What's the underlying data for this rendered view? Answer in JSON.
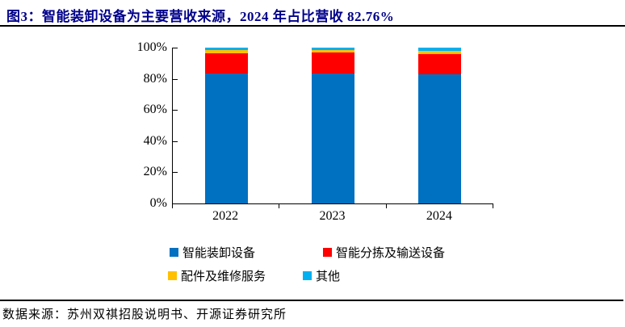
{
  "header": {
    "title": "图3：智能装卸设备为主要营收来源，2024 年占比营收 82.76%",
    "title_color": "#00008B"
  },
  "footer": {
    "source": "数据来源：苏州双祺招股说明书、开源证券研究所"
  },
  "chart_data": {
    "type": "bar",
    "stacked": true,
    "title": "",
    "xlabel": "",
    "ylabel": "",
    "categories": [
      "2022",
      "2023",
      "2024"
    ],
    "series": [
      {
        "name": "智能装卸设备",
        "color": "#0070C0",
        "values": [
          83.2,
          83.6,
          82.76
        ]
      },
      {
        "name": "智能分拣及输送设备",
        "color": "#FF0000",
        "values": [
          13.2,
          13.3,
          13.04
        ]
      },
      {
        "name": "配件及维修服务",
        "color": "#FFC000",
        "values": [
          2.1,
          1.5,
          2.1
        ]
      },
      {
        "name": "其他",
        "color": "#00B0F0",
        "values": [
          1.5,
          1.6,
          2.1
        ]
      }
    ],
    "ylim": [
      0,
      100
    ],
    "y_tick_step": 20,
    "y_tick_labels": [
      "0%",
      "20%",
      "40%",
      "60%",
      "80%",
      "100%"
    ],
    "grid": false,
    "legend_position": "bottom"
  }
}
